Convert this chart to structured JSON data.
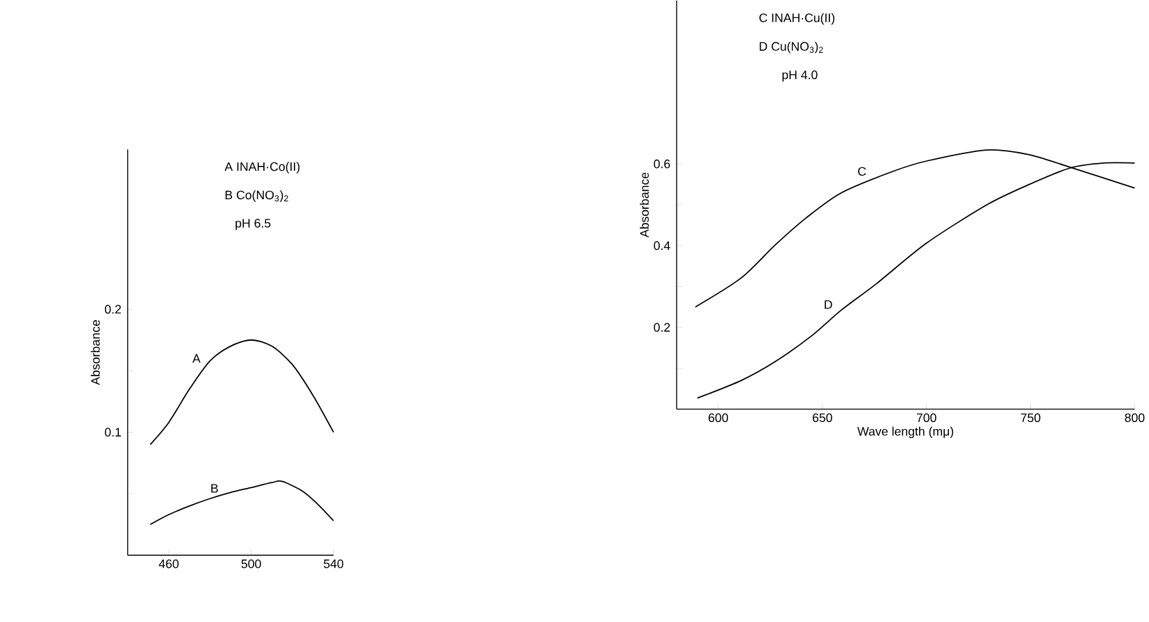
{
  "chart_data": [
    {
      "type": "line",
      "ylabel": "Absorbance",
      "xlim": [
        440,
        540
      ],
      "ylim": [
        0,
        0.33
      ],
      "xticks": [
        460,
        500,
        540
      ],
      "yticks": [
        {
          "value": 0.05,
          "label": null
        },
        0.1,
        {
          "value": 0.15,
          "label": null
        },
        0.2
      ],
      "annotations": [
        "A  INAH·Co(II)",
        "B  Co(NO$_{3}$)$_{2}$",
        "pH 6.5"
      ],
      "series": [
        {
          "name": "A",
          "color": "#000000",
          "x": [
            451,
            460,
            470,
            480,
            490,
            500,
            510,
            520,
            530,
            540
          ],
          "values": [
            0.09,
            0.108,
            0.135,
            0.158,
            0.17,
            0.175,
            0.17,
            0.155,
            0.13,
            0.1
          ]
        },
        {
          "name": "B",
          "color": "#000000",
          "x": [
            451,
            460,
            470,
            480,
            490,
            500,
            510,
            515,
            525,
            532,
            540
          ],
          "values": [
            0.025,
            0.033,
            0.04,
            0.046,
            0.051,
            0.055,
            0.059,
            0.06,
            0.052,
            0.042,
            0.028
          ]
        }
      ]
    },
    {
      "type": "line",
      "xlabel": "Wave length (mμ)",
      "ylabel": "Absorbance",
      "xlim": [
        580,
        800
      ],
      "ylim": [
        0,
        1.0
      ],
      "xticks": [
        600,
        650,
        700,
        750,
        800
      ],
      "yticks": [
        {
          "value": 0.1,
          "label": null
        },
        0.2,
        {
          "value": 0.3,
          "label": null
        },
        0.4,
        {
          "value": 0.5,
          "label": null
        },
        0.6
      ],
      "annotations": [
        "C  INAH·Cu(II)",
        "D  Cu(NO$_{3}$)$_{2}$",
        "pH 4.0"
      ],
      "series": [
        {
          "name": "C",
          "color": "#000000",
          "x": [
            589,
            611,
            627,
            642,
            659,
            684,
            700,
            729,
            749,
            769,
            800
          ],
          "values": [
            0.25,
            0.321,
            0.4,
            0.467,
            0.529,
            0.582,
            0.607,
            0.634,
            0.623,
            0.592,
            0.541
          ]
        },
        {
          "name": "D",
          "color": "#000000",
          "x": [
            590,
            611,
            627,
            645,
            659,
            676,
            700,
            729,
            749,
            769,
            785,
            800
          ],
          "values": [
            0.027,
            0.07,
            0.115,
            0.18,
            0.242,
            0.307,
            0.406,
            0.5,
            0.549,
            0.59,
            0.602,
            0.602
          ]
        }
      ]
    }
  ]
}
